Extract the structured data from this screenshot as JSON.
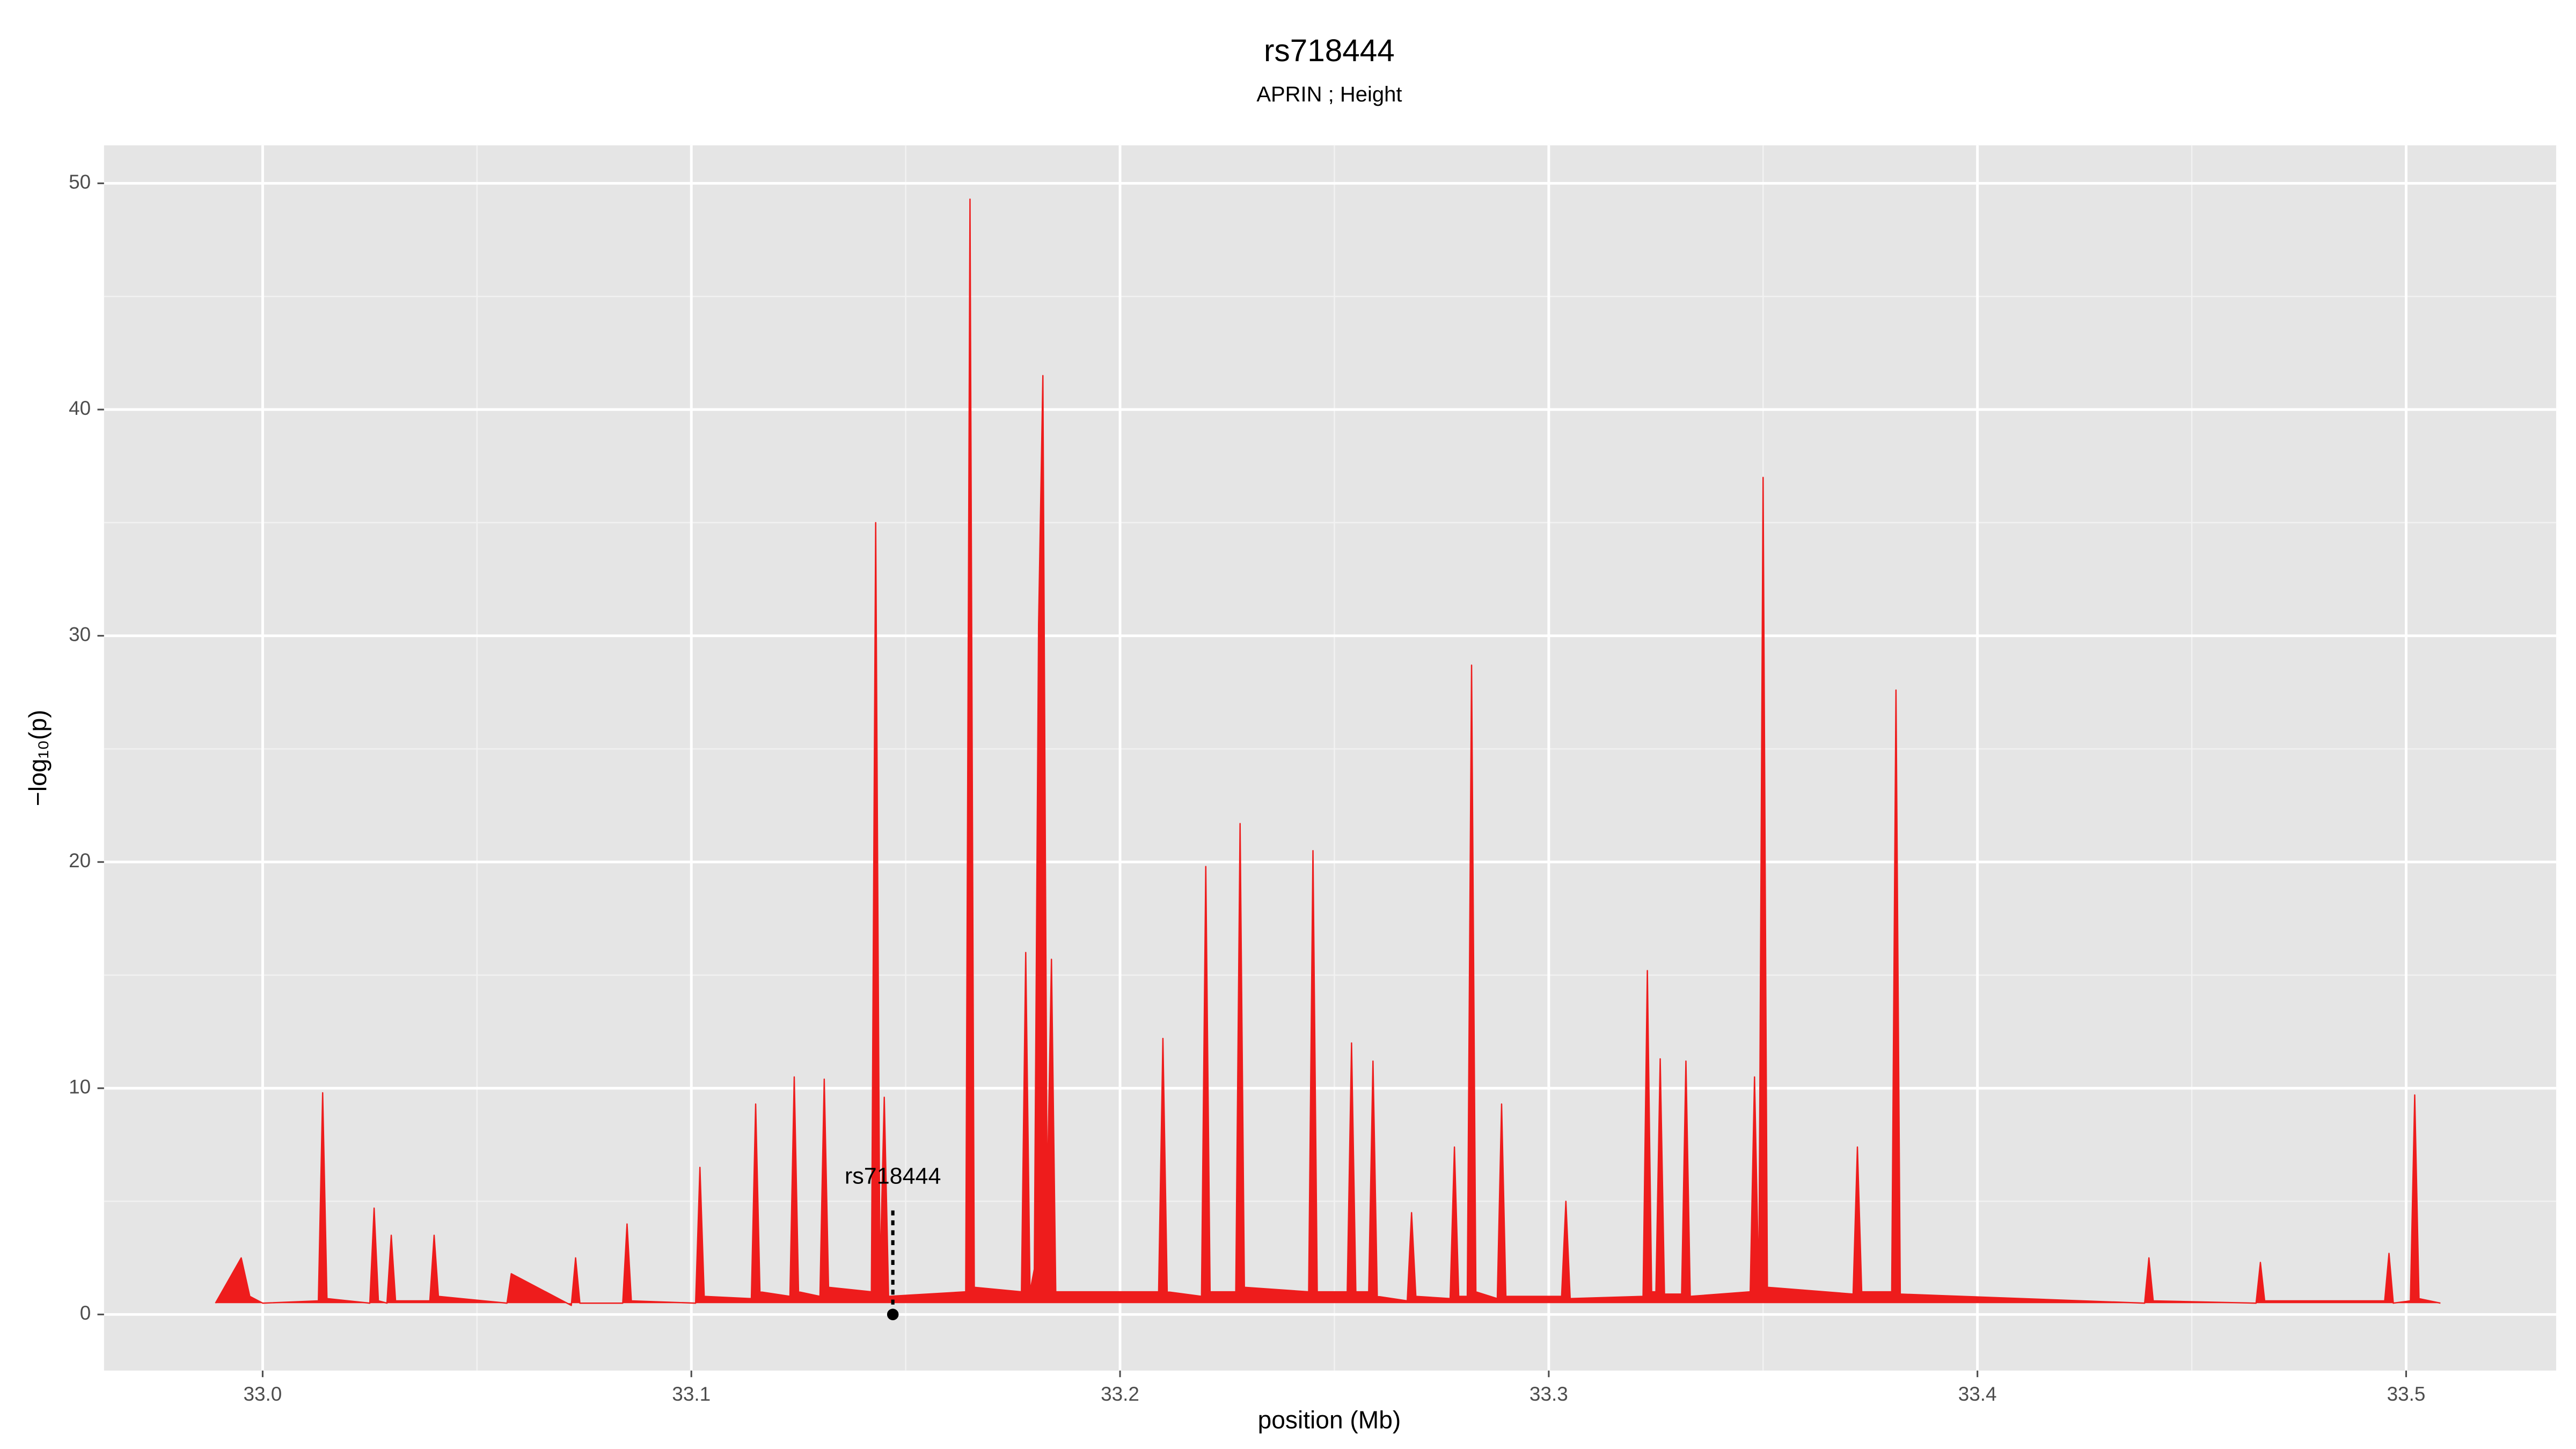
{
  "chart_data": {
    "type": "area",
    "title": "rs718444",
    "subtitle": "APRIN ; Height",
    "xlabel": "position (Mb)",
    "ylabel": "−log₁₀(p)",
    "color": "#ee1c1c",
    "x": [
      32.989,
      32.995,
      32.997,
      33.0,
      33.013,
      33.014,
      33.015,
      33.025,
      33.026,
      33.027,
      33.029,
      33.03,
      33.031,
      33.039,
      33.04,
      33.041,
      33.057,
      33.058,
      33.072,
      33.073,
      33.074,
      33.084,
      33.085,
      33.086,
      33.101,
      33.102,
      33.103,
      33.114,
      33.115,
      33.116,
      33.123,
      33.124,
      33.125,
      33.13,
      33.131,
      33.132,
      33.142,
      33.143,
      33.144,
      33.145,
      33.146,
      33.164,
      33.165,
      33.166,
      33.177,
      33.178,
      33.179,
      33.18,
      33.181,
      33.182,
      33.183,
      33.184,
      33.185,
      33.209,
      33.21,
      33.211,
      33.219,
      33.22,
      33.221,
      33.227,
      33.228,
      33.229,
      33.244,
      33.245,
      33.246,
      33.253,
      33.254,
      33.255,
      33.258,
      33.259,
      33.26,
      33.267,
      33.268,
      33.269,
      33.277,
      33.278,
      33.279,
      33.281,
      33.282,
      33.283,
      33.288,
      33.289,
      33.29,
      33.303,
      33.304,
      33.305,
      33.322,
      33.323,
      33.324,
      33.325,
      33.326,
      33.327,
      33.331,
      33.332,
      33.333,
      33.347,
      33.348,
      33.349,
      33.35,
      33.351,
      33.371,
      33.372,
      33.373,
      33.38,
      33.381,
      33.382,
      33.439,
      33.44,
      33.441,
      33.465,
      33.466,
      33.467,
      33.495,
      33.496,
      33.497,
      33.501,
      33.502,
      33.503,
      33.508
    ],
    "values": [
      0.5,
      2.5,
      0.8,
      0.5,
      0.6,
      9.8,
      0.7,
      0.5,
      4.7,
      0.6,
      0.5,
      3.5,
      0.6,
      0.6,
      3.5,
      0.8,
      0.5,
      1.8,
      0.4,
      2.5,
      0.5,
      0.5,
      4.0,
      0.6,
      0.5,
      6.5,
      0.8,
      0.7,
      9.3,
      1.0,
      0.8,
      10.5,
      1.0,
      0.8,
      10.4,
      1.2,
      1.0,
      35.0,
      1.5,
      9.6,
      0.8,
      1.0,
      49.3,
      1.2,
      1.0,
      16.0,
      1.0,
      2.0,
      30.5,
      41.5,
      5.0,
      15.7,
      1.0,
      1.0,
      12.2,
      1.0,
      0.8,
      19.8,
      1.0,
      1.0,
      21.7,
      1.2,
      1.0,
      20.5,
      1.0,
      1.0,
      12.0,
      1.0,
      1.0,
      11.2,
      0.8,
      0.6,
      4.5,
      0.8,
      0.7,
      7.4,
      0.8,
      0.8,
      28.7,
      1.0,
      0.7,
      9.3,
      0.8,
      0.8,
      5.0,
      0.7,
      0.8,
      15.2,
      1.0,
      1.0,
      11.3,
      0.9,
      0.9,
      11.2,
      0.8,
      1.0,
      10.5,
      1.0,
      37.0,
      1.2,
      0.9,
      7.4,
      1.0,
      1.0,
      27.6,
      0.9,
      0.5,
      2.5,
      0.6,
      0.5,
      2.3,
      0.6,
      0.6,
      2.7,
      0.5,
      0.6,
      9.7,
      0.7,
      0.5
    ],
    "annotation": {
      "label": "rs718444",
      "x": 33.147,
      "y": 0
    },
    "xlim": [
      32.963,
      33.535
    ],
    "ylim": [
      -2.48,
      51.68
    ],
    "xticks": [
      {
        "value": 33,
        "label": "33.0"
      },
      33.1,
      33.2,
      33.3,
      33.4,
      33.5
    ],
    "yticks": [
      0,
      10,
      20,
      30,
      40,
      50
    ],
    "grid": true,
    "minor_grid": true
  }
}
